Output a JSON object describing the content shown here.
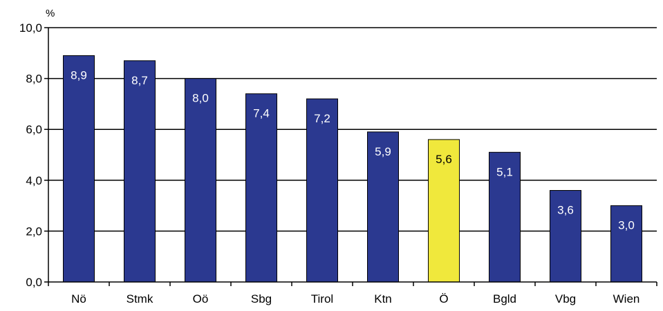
{
  "chart_data": {
    "type": "bar",
    "title": "",
    "xlabel": "",
    "ylabel": "%",
    "ylim": [
      0,
      10
    ],
    "yticks": [
      "0,0",
      "2,0",
      "4,0",
      "6,0",
      "8,0",
      "10,0"
    ],
    "grid": true,
    "categories": [
      "Nö",
      "Stmk",
      "Oö",
      "Sbg",
      "Tirol",
      "Ktn",
      "Ö",
      "Bgld",
      "Vbg",
      "Wien"
    ],
    "values": [
      8.9,
      8.7,
      8.0,
      7.4,
      7.2,
      5.9,
      5.6,
      5.1,
      3.6,
      3.0
    ],
    "value_labels": [
      "8,9",
      "8,7",
      "8,0",
      "7,4",
      "7,2",
      "5,9",
      "5,6",
      "5,1",
      "3,6",
      "3,0"
    ],
    "highlight_category": "Ö",
    "colors": {
      "bar": "#2b3990",
      "highlight": "#f0e83c",
      "label_on_bar": "#ffffff",
      "label_on_highlight": "#000000",
      "grid": "#000000"
    }
  }
}
